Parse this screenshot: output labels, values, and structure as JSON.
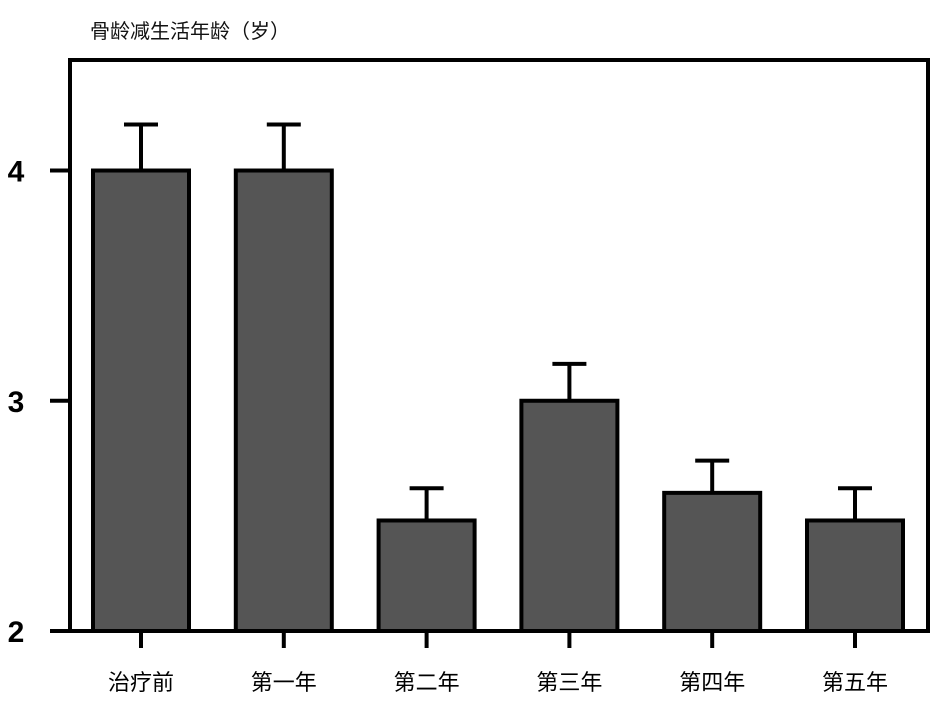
{
  "chart_data": {
    "type": "bar",
    "ylabel": "骨龄减生活年龄（岁）",
    "categories": [
      "治疗前",
      "第一年",
      "第二年",
      "第三年",
      "第四年",
      "第五年"
    ],
    "values": [
      4.0,
      4.0,
      2.48,
      3.0,
      2.6,
      2.48
    ],
    "error_upper": [
      0.2,
      0.2,
      0.14,
      0.16,
      0.14,
      0.14
    ],
    "yticks": [
      2,
      3,
      4
    ],
    "ylim": [
      2,
      4.48
    ],
    "grid": false,
    "colors": {
      "bar": "#555555",
      "edge": "#000000"
    }
  }
}
